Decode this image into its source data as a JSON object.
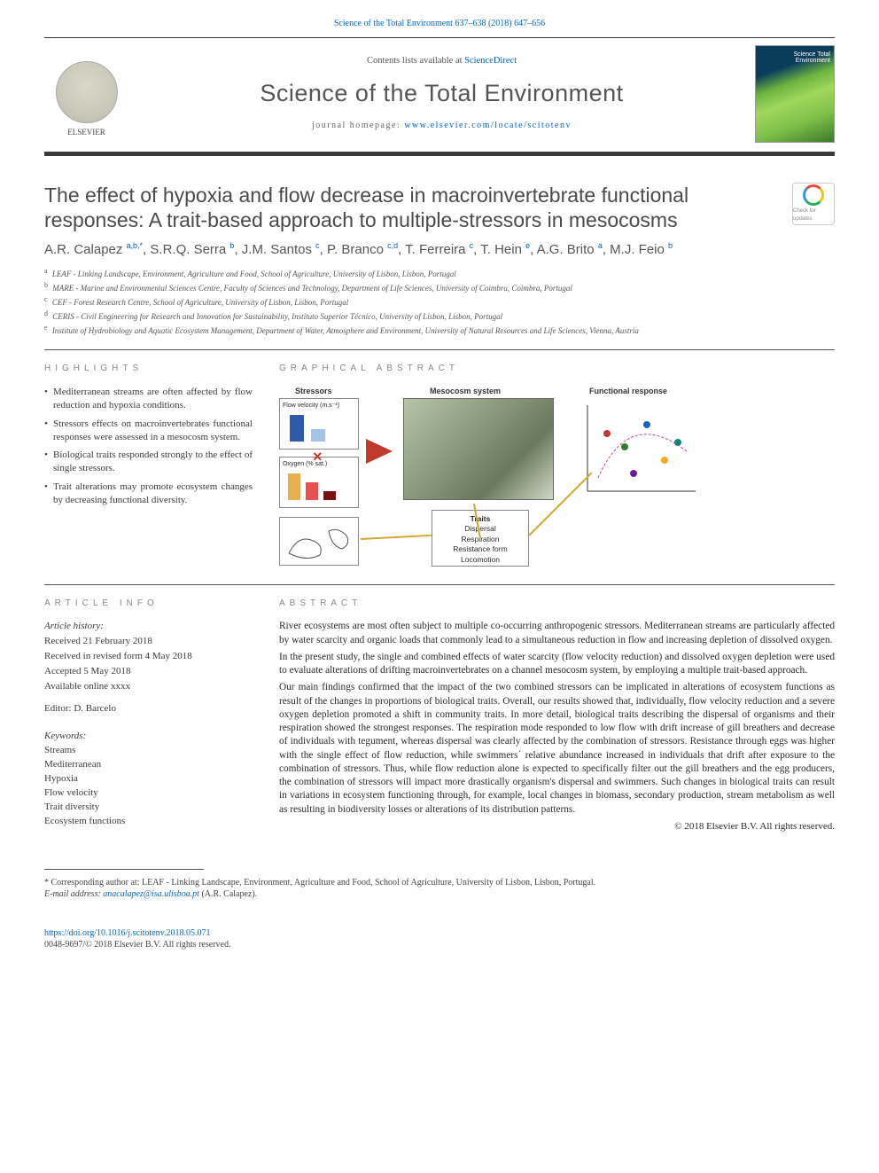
{
  "citation_header": "Science of the Total Environment 637–638 (2018) 647–656",
  "publisher_logo_text": "ELSEVIER",
  "contents_line_prefix": "Contents lists available at ",
  "contents_link": "ScienceDirect",
  "journal_name": "Science of the Total Environment",
  "homepage_prefix": "journal homepage: ",
  "homepage_url": "www.elsevier.com/locate/scitotenv",
  "article_title": "The effect of hypoxia and flow decrease in macroinvertebrate functional responses: A trait-based approach to multiple-stressors in mesocosms",
  "crossmark_text": "Check for updates",
  "authors_html": "A.R. Calapez <sup>a,b,*</sup>, S.R.Q. Serra <sup>b</sup>, J.M. Santos <sup>c</sup>, P. Branco <sup>c,d</sup>, T. Ferreira <sup>c</sup>, T. Hein <sup>e</sup>, A.G. Brito <sup>a</sup>, M.J. Feio <sup>b</sup>",
  "affiliations": [
    {
      "s": "a",
      "t": "LEAF - Linking Landscape, Environment, Agriculture and Food, School of Agriculture, University of Lisbon, Lisbon, Portugal"
    },
    {
      "s": "b",
      "t": "MARE - Marine and Environmental Sciences Centre, Faculty of Sciences and Technology, Department of Life Sciences, University of Coimbra, Coimbra, Portugal"
    },
    {
      "s": "c",
      "t": "CEF - Forest Research Centre, School of Agriculture, University of Lisbon, Lisbon, Portugal"
    },
    {
      "s": "d",
      "t": "CERIS - Civil Engineering for Research and Innovation for Sustainability, Instituto Superior Técnico, University of Lisbon, Lisbon, Portugal"
    },
    {
      "s": "e",
      "t": "Institute of Hydrobiology and Aquatic Ecosystem Management, Department of Water, Atmosphere and Environment, University of Natural Resources and Life Sciences, Vienna, Austria"
    }
  ],
  "highlights_head": "HIGHLIGHTS",
  "highlights": [
    "Mediterranean streams are often affected by flow reduction and hypoxia conditions.",
    "Stressors effects on macroinvertebrates functional responses were assessed in a mesocosm system.",
    "Biological traits responded strongly to the effect of single stressors.",
    "Trait alterations may promote ecosystem changes by decreasing functional diversity."
  ],
  "ga_head": "GRAPHICAL ABSTRACT",
  "ga": {
    "labels": {
      "stressors": "Stressors",
      "mesocosm": "Mesocosm system",
      "response": "Functional response",
      "flow": "Flow velocity (m.s⁻¹)",
      "oxy": "Oxygen (% sat.)",
      "traits": "Traits",
      "trait_items": "Dispersal\nRespiration\nResistance form\nLocomotion"
    },
    "colors": {
      "arrow": "#c0392b",
      "connector": "#d4a72c",
      "box_border": "#888888",
      "flow_bars": [
        "#2e5aa8",
        "#a3c2e8"
      ],
      "oxy_bars": [
        "#e8b050",
        "#e85050",
        "#7a1010"
      ]
    }
  },
  "article_info_head": "ARTICLE INFO",
  "article_history_head": "Article history:",
  "article_history": [
    "Received 21 February 2018",
    "Received in revised form 4 May 2018",
    "Accepted 5 May 2018",
    "Available online xxxx"
  ],
  "editor_label": "Editor: ",
  "editor_name": "D. Barcelo",
  "keywords_head": "Keywords:",
  "keywords": [
    "Streams",
    "Mediterranean",
    "Hypoxia",
    "Flow velocity",
    "Trait diversity",
    "Ecosystem functions"
  ],
  "abstract_head": "ABSTRACT",
  "abstract_paragraphs": [
    "River ecosystems are most often subject to multiple co-occurring anthropogenic stressors. Mediterranean streams are particularly affected by water scarcity and organic loads that commonly lead to a simultaneous reduction in flow and increasing depletion of dissolved oxygen.",
    "In the present study, the single and combined effects of water scarcity (flow velocity reduction) and dissolved oxygen depletion were used to evaluate alterations of drifting macroinvertebrates on a channel mesocosm system, by employing a multiple trait-based approach.",
    "Our main findings confirmed that the impact of the two combined stressors can be implicated in alterations of ecosystem functions as result of the changes in proportions of biological traits. Overall, our results showed that, individually, flow velocity reduction and a severe oxygen depletion promoted a shift in community traits. In more detail, biological traits describing the dispersal of organisms and their respiration showed the strongest responses. The respiration mode responded to low flow with drift increase of gill breathers and decrease of individuals with tegument, whereas dispersal was clearly affected by the combination of stressors. Resistance through eggs was higher with the single effect of flow reduction, while swimmers´ relative abundance increased in individuals that drift after exposure to the combination of stressors. Thus, while flow reduction alone is expected to specifically filter out the gill breathers and the egg producers, the combination of stressors will impact more drastically organism's dispersal and swimmers. Such changes in biological traits can result in variations in ecosystem functioning through, for example, local changes in biomass, secondary production, stream metabolism as well as resulting in biodiversity losses or alterations of its distribution patterns."
  ],
  "copyright": "© 2018 Elsevier B.V. All rights reserved.",
  "corresponding_prefix": "* Corresponding author at: ",
  "corresponding_text": "LEAF - Linking Landscape, Environment, Agriculture and Food, School of Agriculture, University of Lisbon, Lisbon, Portugal.",
  "email_label": "E-mail address: ",
  "email": "anacalapez@isa.ulisboa.pt",
  "email_paren": " (A.R. Calapez).",
  "doi": "https://doi.org/10.1016/j.scitotenv.2018.05.071",
  "issn_line": "0048-9697/© 2018 Elsevier B.V. All rights reserved."
}
